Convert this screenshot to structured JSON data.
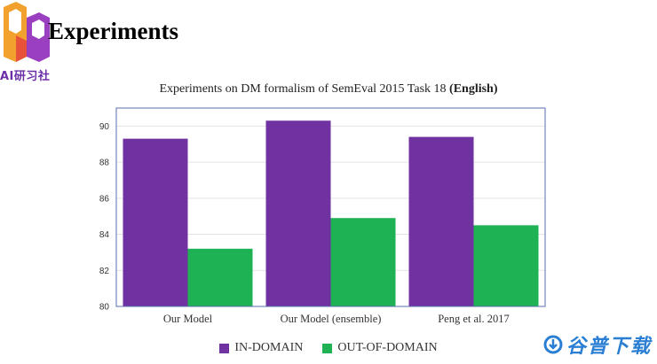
{
  "slide": {
    "title": "Experiments",
    "logo_text": "AI研习社"
  },
  "chart_title_main": "Experiments on DM formalism of SemEval 2015 Task 18",
  "chart_title_bold": "(English)",
  "watermark": "谷普下载",
  "colors": {
    "in_domain": "#6f32a0",
    "out_of_domain": "#1fb255",
    "plot_border": "#5a6fb0",
    "grid": "#e3e3e3"
  },
  "chart_data": {
    "type": "bar",
    "title": "Experiments on DM formalism of SemEval 2015 Task 18 (English)",
    "categories": [
      "Our Model",
      "Our Model (ensemble)",
      "Peng et al. 2017"
    ],
    "series": [
      {
        "name": "IN-DOMAIN",
        "values": [
          89.3,
          90.3,
          89.4
        ]
      },
      {
        "name": "OUT-OF-DOMAIN",
        "values": [
          83.2,
          84.9,
          84.5
        ]
      }
    ],
    "ylim": [
      80,
      91
    ],
    "yticks": [
      80,
      82,
      84,
      86,
      88,
      90
    ],
    "xlabel": "",
    "ylabel": "",
    "grid": true,
    "legend": "bottom-center"
  }
}
